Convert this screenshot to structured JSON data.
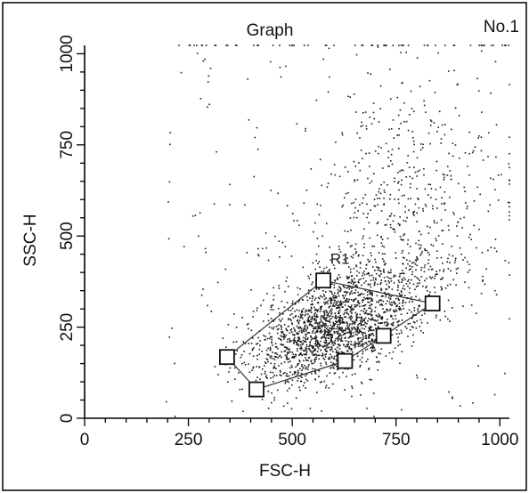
{
  "chart_data": {
    "type": "scatter",
    "title": "Graph",
    "plot_number": "No.1",
    "xlabel": "FSC-H",
    "ylabel": "SSC-H",
    "xlim": [
      0,
      1023
    ],
    "ylim": [
      0,
      1023
    ],
    "xticks": [
      0,
      250,
      500,
      750,
      1000
    ],
    "yticks": [
      0,
      250,
      500,
      750,
      1000
    ],
    "xtick_labels": [
      "0",
      "250",
      "500",
      "750",
      "1000"
    ],
    "ytick_labels": [
      "0",
      "250",
      "500",
      "750",
      "1000"
    ],
    "grid": false,
    "region": {
      "name": "R1",
      "label_position": [
        615,
        423
      ],
      "vertices": [
        [
          343,
          168
        ],
        [
          575,
          378
        ],
        [
          838,
          315
        ],
        [
          720,
          226
        ],
        [
          627,
          157
        ],
        [
          414,
          79
        ]
      ]
    },
    "density_clusters": [
      {
        "center": [
          590,
          240
        ],
        "spread": [
          95,
          65
        ],
        "count": 1600
      },
      {
        "center": [
          700,
          330
        ],
        "spread": [
          110,
          80
        ],
        "count": 380
      },
      {
        "center": [
          760,
          560
        ],
        "spread": [
          130,
          170
        ],
        "count": 560
      }
    ],
    "sparse_range": {
      "x": [
        200,
        1023
      ],
      "y": [
        20,
        1023
      ],
      "count": 170
    },
    "saturated_row": {
      "y": 1023,
      "x_range": [
        200,
        1023
      ],
      "count": 60
    }
  }
}
